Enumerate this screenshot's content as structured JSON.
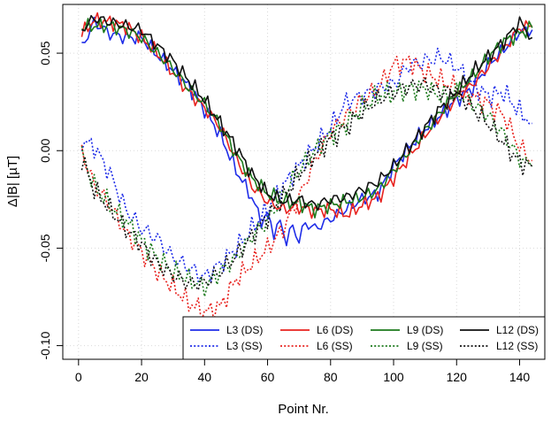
{
  "chart_data": {
    "type": "line",
    "xlabel": "Point Nr.",
    "ylabel": "Δ|B| [µT]",
    "xlim": [
      -5,
      148
    ],
    "ylim": [
      -0.107,
      0.075
    ],
    "x_ticks": [
      0,
      20,
      40,
      60,
      80,
      100,
      120,
      140
    ],
    "y_ticks": [
      -0.1,
      -0.05,
      0.0,
      0.05
    ],
    "x_tick_labels": [
      "0",
      "20",
      "40",
      "60",
      "80",
      "100",
      "120",
      "140"
    ],
    "y_tick_labels": [
      "-0.10",
      "-0.05",
      "0.00",
      "0.05"
    ],
    "grid": true,
    "legend_position": "bottom-right",
    "series": [
      {
        "name": "L3 (DS)",
        "color": "#1f2de8",
        "dash": "solid",
        "x": [
          1,
          5,
          10,
          15,
          20,
          25,
          30,
          35,
          40,
          45,
          50,
          55,
          58,
          60,
          62,
          64,
          66,
          68,
          70,
          72,
          75,
          80,
          85,
          90,
          95,
          100,
          105,
          110,
          115,
          120,
          125,
          130,
          135,
          140,
          144
        ],
        "y": [
          0.053,
          0.066,
          0.06,
          0.058,
          0.058,
          0.049,
          0.041,
          0.033,
          0.021,
          0.008,
          -0.01,
          -0.024,
          -0.036,
          -0.033,
          -0.042,
          -0.037,
          -0.046,
          -0.039,
          -0.046,
          -0.037,
          -0.04,
          -0.035,
          -0.03,
          -0.025,
          -0.022,
          -0.008,
          0.002,
          0.011,
          0.018,
          0.026,
          0.032,
          0.044,
          0.052,
          0.061,
          0.062
        ]
      },
      {
        "name": "L3 (SS)",
        "color": "#1f2de8",
        "dash": "dotted",
        "x": [
          1,
          5,
          10,
          15,
          20,
          25,
          30,
          35,
          40,
          45,
          50,
          55,
          60,
          65,
          70,
          75,
          80,
          85,
          90,
          95,
          100,
          105,
          110,
          115,
          120,
          125,
          130,
          135,
          140,
          144
        ],
        "y": [
          0.005,
          0.002,
          -0.012,
          -0.03,
          -0.04,
          -0.045,
          -0.055,
          -0.06,
          -0.065,
          -0.058,
          -0.05,
          -0.04,
          -0.03,
          -0.018,
          -0.008,
          0.002,
          0.012,
          0.025,
          0.028,
          0.032,
          0.034,
          0.044,
          0.046,
          0.048,
          0.043,
          0.034,
          0.028,
          0.03,
          0.02,
          0.014
        ]
      },
      {
        "name": "L6 (DS)",
        "color": "#e8231f",
        "dash": "solid",
        "x": [
          1,
          5,
          10,
          15,
          20,
          25,
          30,
          35,
          40,
          45,
          50,
          55,
          60,
          65,
          70,
          75,
          80,
          85,
          90,
          95,
          100,
          105,
          110,
          115,
          120,
          125,
          130,
          135,
          140,
          144
        ],
        "y": [
          0.06,
          0.067,
          0.066,
          0.064,
          0.058,
          0.05,
          0.04,
          0.03,
          0.022,
          0.012,
          -0.004,
          -0.018,
          -0.026,
          -0.03,
          -0.029,
          -0.031,
          -0.03,
          -0.033,
          -0.028,
          -0.024,
          -0.014,
          -0.003,
          0.008,
          0.018,
          0.027,
          0.034,
          0.043,
          0.052,
          0.063,
          0.064
        ]
      },
      {
        "name": "L6 (SS)",
        "color": "#e8231f",
        "dash": "dotted",
        "x": [
          1,
          5,
          10,
          15,
          20,
          25,
          30,
          35,
          40,
          45,
          50,
          55,
          60,
          65,
          70,
          75,
          80,
          85,
          90,
          95,
          100,
          105,
          110,
          115,
          120,
          125,
          130,
          135,
          140,
          144
        ],
        "y": [
          0.0,
          -0.018,
          -0.028,
          -0.042,
          -0.052,
          -0.062,
          -0.07,
          -0.078,
          -0.083,
          -0.08,
          -0.066,
          -0.058,
          -0.05,
          -0.04,
          -0.024,
          -0.005,
          0.01,
          0.018,
          0.026,
          0.032,
          0.044,
          0.046,
          0.04,
          0.036,
          0.032,
          0.028,
          0.024,
          0.018,
          0.002,
          -0.005
        ]
      },
      {
        "name": "L9 (DS)",
        "color": "#1c7a1c",
        "dash": "solid",
        "x": [
          1,
          5,
          10,
          15,
          20,
          25,
          30,
          35,
          40,
          45,
          50,
          55,
          60,
          65,
          70,
          75,
          80,
          85,
          90,
          95,
          100,
          105,
          110,
          115,
          120,
          125,
          130,
          135,
          140,
          144
        ],
        "y": [
          0.063,
          0.064,
          0.064,
          0.062,
          0.058,
          0.05,
          0.042,
          0.032,
          0.024,
          0.013,
          -0.002,
          -0.014,
          -0.022,
          -0.026,
          -0.027,
          -0.03,
          -0.028,
          -0.026,
          -0.024,
          -0.02,
          -0.01,
          0.0,
          0.01,
          0.02,
          0.03,
          0.038,
          0.048,
          0.056,
          0.06,
          0.063
        ]
      },
      {
        "name": "L9 (SS)",
        "color": "#1c7a1c",
        "dash": "dotted",
        "x": [
          1,
          5,
          10,
          15,
          20,
          25,
          30,
          35,
          40,
          45,
          50,
          55,
          60,
          65,
          70,
          75,
          80,
          85,
          90,
          95,
          100,
          105,
          110,
          115,
          120,
          125,
          130,
          135,
          140,
          144
        ],
        "y": [
          -0.002,
          -0.018,
          -0.028,
          -0.036,
          -0.046,
          -0.055,
          -0.062,
          -0.066,
          -0.07,
          -0.062,
          -0.055,
          -0.044,
          -0.036,
          -0.022,
          -0.01,
          0.0,
          0.008,
          0.014,
          0.022,
          0.028,
          0.03,
          0.032,
          0.032,
          0.028,
          0.03,
          0.024,
          0.018,
          0.008,
          -0.004,
          -0.008
        ]
      },
      {
        "name": "L12 (DS)",
        "color": "#111111",
        "dash": "solid",
        "x": [
          1,
          5,
          10,
          15,
          20,
          25,
          30,
          35,
          40,
          45,
          50,
          55,
          60,
          65,
          70,
          75,
          80,
          85,
          90,
          95,
          100,
          105,
          110,
          115,
          120,
          125,
          130,
          135,
          140,
          144
        ],
        "y": [
          0.062,
          0.068,
          0.066,
          0.064,
          0.062,
          0.054,
          0.046,
          0.036,
          0.026,
          0.014,
          0.002,
          -0.012,
          -0.022,
          -0.026,
          -0.025,
          -0.028,
          -0.025,
          -0.024,
          -0.02,
          -0.016,
          -0.008,
          0.002,
          0.012,
          0.022,
          0.03,
          0.04,
          0.048,
          0.056,
          0.066,
          0.058
        ]
      },
      {
        "name": "L12 (SS)",
        "color": "#111111",
        "dash": "dotted",
        "x": [
          1,
          5,
          10,
          15,
          20,
          25,
          30,
          35,
          40,
          45,
          50,
          55,
          60,
          65,
          70,
          75,
          80,
          85,
          90,
          95,
          100,
          105,
          110,
          115,
          120,
          125,
          130,
          135,
          140,
          144
        ],
        "y": [
          -0.004,
          -0.02,
          -0.03,
          -0.04,
          -0.048,
          -0.058,
          -0.064,
          -0.068,
          -0.068,
          -0.062,
          -0.054,
          -0.044,
          -0.034,
          -0.024,
          -0.012,
          -0.002,
          0.006,
          0.012,
          0.02,
          0.026,
          0.03,
          0.033,
          0.034,
          0.03,
          0.03,
          0.022,
          0.014,
          0.004,
          -0.006,
          -0.008
        ]
      }
    ]
  }
}
